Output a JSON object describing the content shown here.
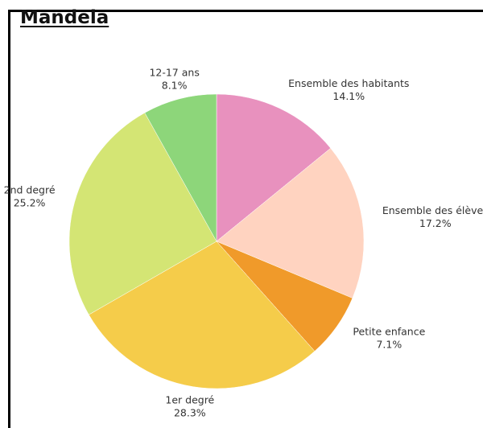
{
  "chart_data": {
    "type": "pie",
    "title": "Mandela",
    "slices": [
      {
        "label": "Ensemble des habitants",
        "value": 14.1,
        "display": "14.1%",
        "color": "#e891be"
      },
      {
        "label": "Ensemble des élèves",
        "value": 17.2,
        "display": "17.2%",
        "color": "#ffd3c0"
      },
      {
        "label": "Petite enfance",
        "value": 7.1,
        "display": "7.1%",
        "color": "#f09a2a"
      },
      {
        "label": "1er degré",
        "value": 28.3,
        "display": "28.3%",
        "color": "#f5cc4a"
      },
      {
        "label": "2nd degré",
        "value": 25.2,
        "display": "25.2%",
        "color": "#d4e574"
      },
      {
        "label": "12-17 ans",
        "value": 8.1,
        "display": "8.1%",
        "color": "#8dd67a"
      }
    ],
    "start_angle": "12 o'clock",
    "direction": "clockwise",
    "legend": "none"
  }
}
